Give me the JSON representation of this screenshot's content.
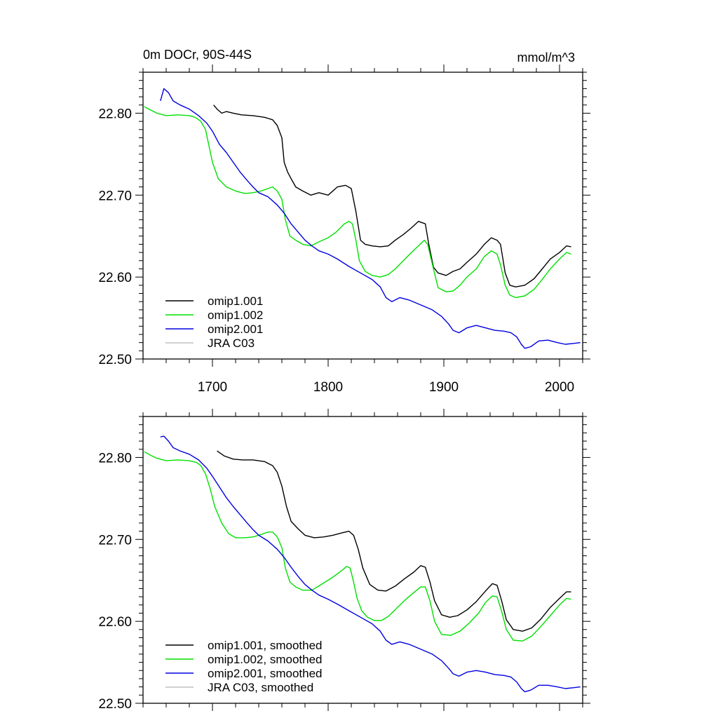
{
  "colors": {
    "omip1_001": "#000000",
    "omip1_002": "#00e000",
    "omip2_001": "#0000e0",
    "jra_c03": "#c0c0c0",
    "frame": "#000000"
  },
  "chart_data": [
    {
      "type": "line",
      "title": "0m DOCr, 90S-44S",
      "units": "mmol/m^3",
      "xlabel": "",
      "ylabel": "",
      "xlim": [
        1640,
        2020
      ],
      "ylim": [
        22.5,
        22.85
      ],
      "xticks": [
        1700,
        1800,
        1900,
        2000
      ],
      "xtick_labels": [
        "1700",
        "1800",
        "1900",
        "2000"
      ],
      "yticks": [
        22.5,
        22.6,
        22.7,
        22.8
      ],
      "ytick_labels": [
        "22.50",
        "22.60",
        "22.70",
        "22.80"
      ],
      "legend": [
        "omip1.001",
        "omip1.002",
        "omip2.001",
        "JRA C03"
      ],
      "legend_position": "bottom-left",
      "series": [
        {
          "name": "omip1.001",
          "color_key": "omip1_001",
          "x": [
            1701,
            1704,
            1708,
            1712,
            1718,
            1725,
            1735,
            1745,
            1752,
            1756,
            1760,
            1762,
            1765,
            1768,
            1772,
            1778,
            1785,
            1792,
            1800,
            1808,
            1815,
            1820,
            1824,
            1828,
            1832,
            1838,
            1845,
            1852,
            1858,
            1865,
            1872,
            1878,
            1884,
            1887,
            1891,
            1895,
            1902,
            1908,
            1914,
            1920,
            1928,
            1935,
            1941,
            1946,
            1949,
            1953,
            1957,
            1962,
            1970,
            1978,
            1985,
            1992,
            2000,
            2006,
            2010
          ],
          "y": [
            22.81,
            22.805,
            22.8,
            22.802,
            22.8,
            22.798,
            22.797,
            22.795,
            22.792,
            22.785,
            22.77,
            22.74,
            22.728,
            22.72,
            22.71,
            22.705,
            22.7,
            22.703,
            22.7,
            22.71,
            22.712,
            22.708,
            22.68,
            22.645,
            22.64,
            22.638,
            22.637,
            22.638,
            22.645,
            22.652,
            22.66,
            22.668,
            22.665,
            22.64,
            22.612,
            22.605,
            22.602,
            22.607,
            22.61,
            22.618,
            22.628,
            22.64,
            22.648,
            22.645,
            22.64,
            22.605,
            22.59,
            22.588,
            22.59,
            22.598,
            22.61,
            22.622,
            22.63,
            22.638,
            22.637
          ]
        },
        {
          "name": "omip1.002",
          "color_key": "omip1_002",
          "x": [
            1641,
            1645,
            1652,
            1660,
            1670,
            1680,
            1685,
            1690,
            1694,
            1697,
            1700,
            1705,
            1712,
            1720,
            1728,
            1735,
            1742,
            1748,
            1752,
            1756,
            1760,
            1763,
            1767,
            1772,
            1778,
            1785,
            1792,
            1800,
            1807,
            1814,
            1818,
            1821,
            1824,
            1827,
            1832,
            1838,
            1845,
            1852,
            1858,
            1865,
            1872,
            1878,
            1883,
            1886,
            1891,
            1895,
            1902,
            1908,
            1914,
            1920,
            1928,
            1935,
            1941,
            1946,
            1949,
            1953,
            1957,
            1962,
            1970,
            1978,
            1985,
            1992,
            2000,
            2006,
            2010
          ],
          "y": [
            22.808,
            22.805,
            22.8,
            22.797,
            22.798,
            22.797,
            22.795,
            22.79,
            22.78,
            22.76,
            22.74,
            22.72,
            22.71,
            22.705,
            22.702,
            22.703,
            22.705,
            22.708,
            22.71,
            22.705,
            22.695,
            22.67,
            22.65,
            22.645,
            22.64,
            22.638,
            22.643,
            22.648,
            22.655,
            22.665,
            22.668,
            22.665,
            22.645,
            22.62,
            22.607,
            22.602,
            22.6,
            22.603,
            22.61,
            22.62,
            22.63,
            22.638,
            22.645,
            22.64,
            22.61,
            22.587,
            22.582,
            22.583,
            22.59,
            22.6,
            22.61,
            22.625,
            22.632,
            22.628,
            22.615,
            22.59,
            22.578,
            22.575,
            22.577,
            22.585,
            22.597,
            22.61,
            22.622,
            22.63,
            22.628
          ]
        },
        {
          "name": "omip2.001",
          "color_key": "omip2_001",
          "x": [
            1655,
            1658,
            1662,
            1666,
            1672,
            1680,
            1688,
            1695,
            1700,
            1706,
            1712,
            1718,
            1724,
            1730,
            1735,
            1740,
            1748,
            1756,
            1762,
            1768,
            1774,
            1780,
            1786,
            1792,
            1800,
            1808,
            1818,
            1828,
            1838,
            1845,
            1850,
            1855,
            1862,
            1870,
            1880,
            1890,
            1898,
            1904,
            1908,
            1913,
            1920,
            1928,
            1936,
            1944,
            1952,
            1958,
            1963,
            1967,
            1970,
            1975,
            1982,
            1990,
            1998,
            2005,
            2012,
            2018
          ],
          "y": [
            22.815,
            22.83,
            22.825,
            22.815,
            22.81,
            22.805,
            22.797,
            22.788,
            22.778,
            22.762,
            22.752,
            22.74,
            22.728,
            22.718,
            22.71,
            22.703,
            22.698,
            22.688,
            22.678,
            22.665,
            22.655,
            22.645,
            22.638,
            22.632,
            22.628,
            22.622,
            22.613,
            22.605,
            22.597,
            22.588,
            22.575,
            22.57,
            22.575,
            22.572,
            22.566,
            22.56,
            22.552,
            22.543,
            22.535,
            22.532,
            22.538,
            22.541,
            22.538,
            22.535,
            22.534,
            22.532,
            22.527,
            22.518,
            22.513,
            22.515,
            22.522,
            22.523,
            22.52,
            22.518,
            22.519,
            22.52
          ]
        },
        {
          "name": "JRA C03",
          "color_key": "jra_c03",
          "x": [],
          "y": []
        }
      ]
    },
    {
      "type": "line",
      "title": "",
      "units": "",
      "xlabel": "",
      "ylabel": "",
      "xlim": [
        1640,
        2020
      ],
      "ylim": [
        22.5,
        22.85
      ],
      "xticks": [
        1700,
        1800,
        1900,
        2000
      ],
      "xtick_labels": [],
      "yticks": [
        22.5,
        22.6,
        22.7,
        22.8
      ],
      "ytick_labels": [
        "22.50",
        "22.60",
        "22.70",
        "22.80"
      ],
      "legend": [
        "omip1.001, smoothed",
        "omip1.002, smoothed",
        "omip2.001, smoothed",
        "JRA C03, smoothed"
      ],
      "legend_position": "bottom-left",
      "series": [
        {
          "name": "omip1.001, smoothed",
          "color_key": "omip1_001",
          "x": [
            1704,
            1710,
            1718,
            1726,
            1735,
            1745,
            1752,
            1756,
            1760,
            1764,
            1768,
            1774,
            1780,
            1788,
            1796,
            1804,
            1812,
            1818,
            1822,
            1826,
            1830,
            1836,
            1843,
            1850,
            1858,
            1866,
            1874,
            1880,
            1884,
            1888,
            1892,
            1898,
            1905,
            1912,
            1920,
            1928,
            1936,
            1942,
            1946,
            1950,
            1954,
            1960,
            1968,
            1976,
            1984,
            1992,
            2000,
            2006,
            2010
          ],
          "y": [
            22.808,
            22.802,
            22.798,
            22.797,
            22.797,
            22.795,
            22.79,
            22.782,
            22.765,
            22.74,
            22.722,
            22.713,
            22.705,
            22.702,
            22.703,
            22.705,
            22.708,
            22.71,
            22.705,
            22.688,
            22.665,
            22.645,
            22.638,
            22.637,
            22.643,
            22.652,
            22.66,
            22.668,
            22.666,
            22.648,
            22.625,
            22.608,
            22.605,
            22.607,
            22.614,
            22.624,
            22.637,
            22.646,
            22.644,
            22.625,
            22.602,
            22.59,
            22.588,
            22.592,
            22.603,
            22.617,
            22.628,
            22.636,
            22.636
          ]
        },
        {
          "name": "omip1.002, smoothed",
          "color_key": "omip1_002",
          "x": [
            1641,
            1646,
            1652,
            1660,
            1670,
            1680,
            1686,
            1690,
            1694,
            1698,
            1702,
            1708,
            1714,
            1720,
            1728,
            1735,
            1742,
            1748,
            1752,
            1756,
            1760,
            1763,
            1767,
            1772,
            1778,
            1786,
            1794,
            1802,
            1810,
            1816,
            1819,
            1822,
            1825,
            1829,
            1834,
            1840,
            1846,
            1852,
            1860,
            1868,
            1874,
            1880,
            1884,
            1888,
            1892,
            1898,
            1906,
            1914,
            1922,
            1930,
            1936,
            1942,
            1946,
            1950,
            1954,
            1960,
            1968,
            1976,
            1984,
            1992,
            2000,
            2006,
            2010
          ],
          "y": [
            22.807,
            22.803,
            22.799,
            22.796,
            22.797,
            22.796,
            22.794,
            22.79,
            22.78,
            22.762,
            22.74,
            22.72,
            22.707,
            22.702,
            22.702,
            22.703,
            22.706,
            22.709,
            22.709,
            22.703,
            22.69,
            22.665,
            22.648,
            22.642,
            22.638,
            22.638,
            22.645,
            22.652,
            22.66,
            22.667,
            22.665,
            22.648,
            22.628,
            22.613,
            22.605,
            22.601,
            22.601,
            22.606,
            22.617,
            22.628,
            22.635,
            22.642,
            22.642,
            22.625,
            22.6,
            22.584,
            22.583,
            22.588,
            22.598,
            22.61,
            22.623,
            22.631,
            22.63,
            22.612,
            22.59,
            22.577,
            22.576,
            22.582,
            22.594,
            22.607,
            22.62,
            22.628,
            22.627
          ]
        },
        {
          "name": "omip2.001, smoothed",
          "color_key": "omip2_001",
          "x": [
            1655,
            1658,
            1662,
            1666,
            1672,
            1680,
            1688,
            1695,
            1700,
            1706,
            1712,
            1718,
            1724,
            1730,
            1735,
            1740,
            1748,
            1756,
            1762,
            1768,
            1774,
            1780,
            1786,
            1792,
            1800,
            1808,
            1818,
            1828,
            1838,
            1845,
            1850,
            1855,
            1862,
            1870,
            1880,
            1890,
            1898,
            1904,
            1908,
            1913,
            1920,
            1928,
            1936,
            1944,
            1952,
            1958,
            1963,
            1967,
            1970,
            1975,
            1982,
            1990,
            1998,
            2005,
            2012,
            2018
          ],
          "y": [
            22.825,
            22.826,
            22.82,
            22.812,
            22.808,
            22.804,
            22.797,
            22.787,
            22.777,
            22.764,
            22.751,
            22.74,
            22.73,
            22.72,
            22.712,
            22.705,
            22.698,
            22.688,
            22.678,
            22.666,
            22.655,
            22.645,
            22.638,
            22.632,
            22.627,
            22.621,
            22.613,
            22.605,
            22.597,
            22.588,
            22.577,
            22.572,
            22.575,
            22.572,
            22.566,
            22.56,
            22.552,
            22.543,
            22.536,
            22.533,
            22.538,
            22.54,
            22.538,
            22.535,
            22.534,
            22.532,
            22.526,
            22.518,
            22.514,
            22.516,
            22.522,
            22.522,
            22.52,
            22.518,
            22.519,
            22.52
          ]
        },
        {
          "name": "JRA C03, smoothed",
          "color_key": "jra_c03",
          "x": [],
          "y": []
        }
      ]
    }
  ]
}
